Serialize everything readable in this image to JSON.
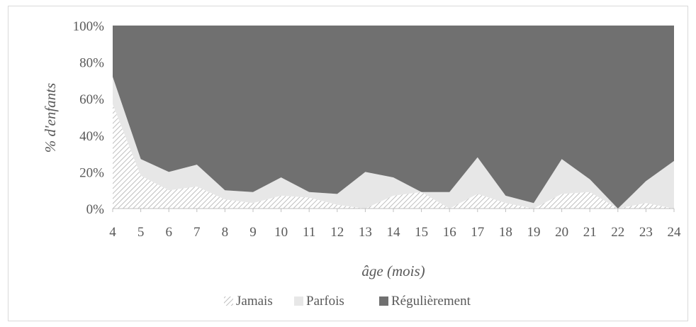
{
  "chart_data": {
    "type": "area",
    "stacked": "percent",
    "x": [
      4,
      5,
      6,
      7,
      8,
      9,
      10,
      11,
      12,
      13,
      14,
      15,
      16,
      17,
      18,
      19,
      20,
      21,
      22,
      23,
      24
    ],
    "series": [
      {
        "name": "Jamais",
        "color": "#d9d9d9",
        "pattern": "diagonal-hatch",
        "values": [
          57,
          18,
          10,
          12,
          5,
          3,
          7,
          6,
          2,
          0,
          7,
          9,
          0,
          8,
          3,
          0,
          8,
          9,
          0,
          3,
          0
        ]
      },
      {
        "name": "Parfois",
        "color": "#e7e7e7",
        "values": [
          15,
          9,
          10,
          12,
          5,
          6,
          10,
          3,
          6,
          20,
          10,
          0,
          9,
          20,
          4,
          3,
          19,
          7,
          0,
          12,
          26
        ]
      },
      {
        "name": "Régulièrement",
        "color": "#707070",
        "values": [
          28,
          73,
          80,
          76,
          90,
          91,
          83,
          91,
          92,
          80,
          83,
          91,
          91,
          72,
          93,
          97,
          73,
          84,
          100,
          85,
          74
        ]
      }
    ],
    "xlabel": "âge (mois)",
    "ylabel": "% d'enfants",
    "y_ticks": [
      "0%",
      "20%",
      "40%",
      "60%",
      "80%",
      "100%"
    ],
    "ylim": [
      0,
      100
    ],
    "grid": false,
    "legend_position": "bottom"
  }
}
